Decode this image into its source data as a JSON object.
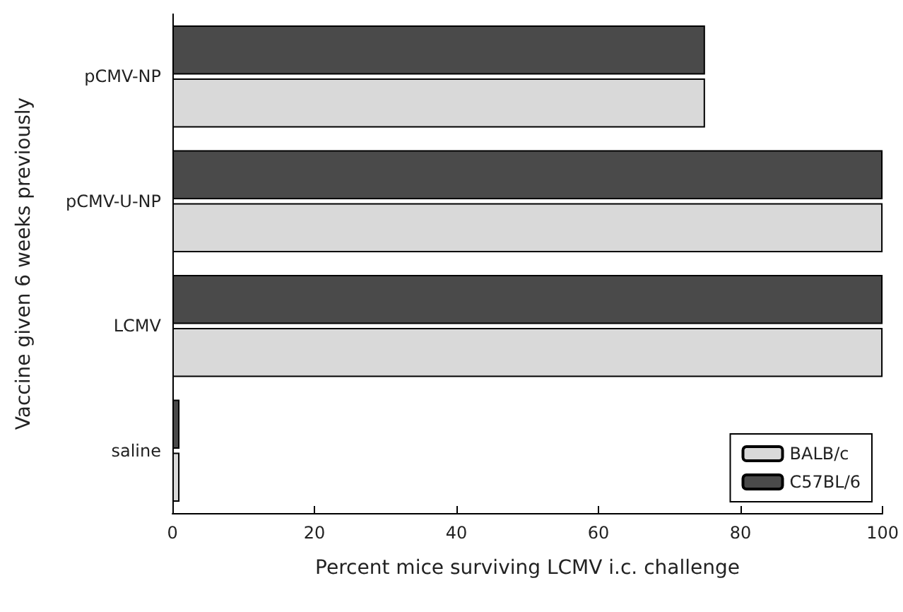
{
  "chart_data": {
    "type": "bar",
    "orientation": "horizontal",
    "xlabel": "Percent mice surviving LCMV i.c. challenge",
    "ylabel": "Vaccine given 6 weeks previously",
    "categories": [
      "pCMV-NP",
      "pCMV-U-NP",
      "LCMV",
      "saline"
    ],
    "series": [
      {
        "name": "C57BL/6",
        "color": "#4a4a4a",
        "values": [
          75,
          100,
          100,
          1
        ]
      },
      {
        "name": "BALB/c",
        "color": "#d9d9d9",
        "values": [
          75,
          100,
          100,
          1
        ]
      }
    ],
    "xlim": [
      0,
      100
    ],
    "xticks": [
      0,
      20,
      40,
      60,
      80,
      100
    ],
    "grid": false,
    "legend": "bottom right"
  }
}
